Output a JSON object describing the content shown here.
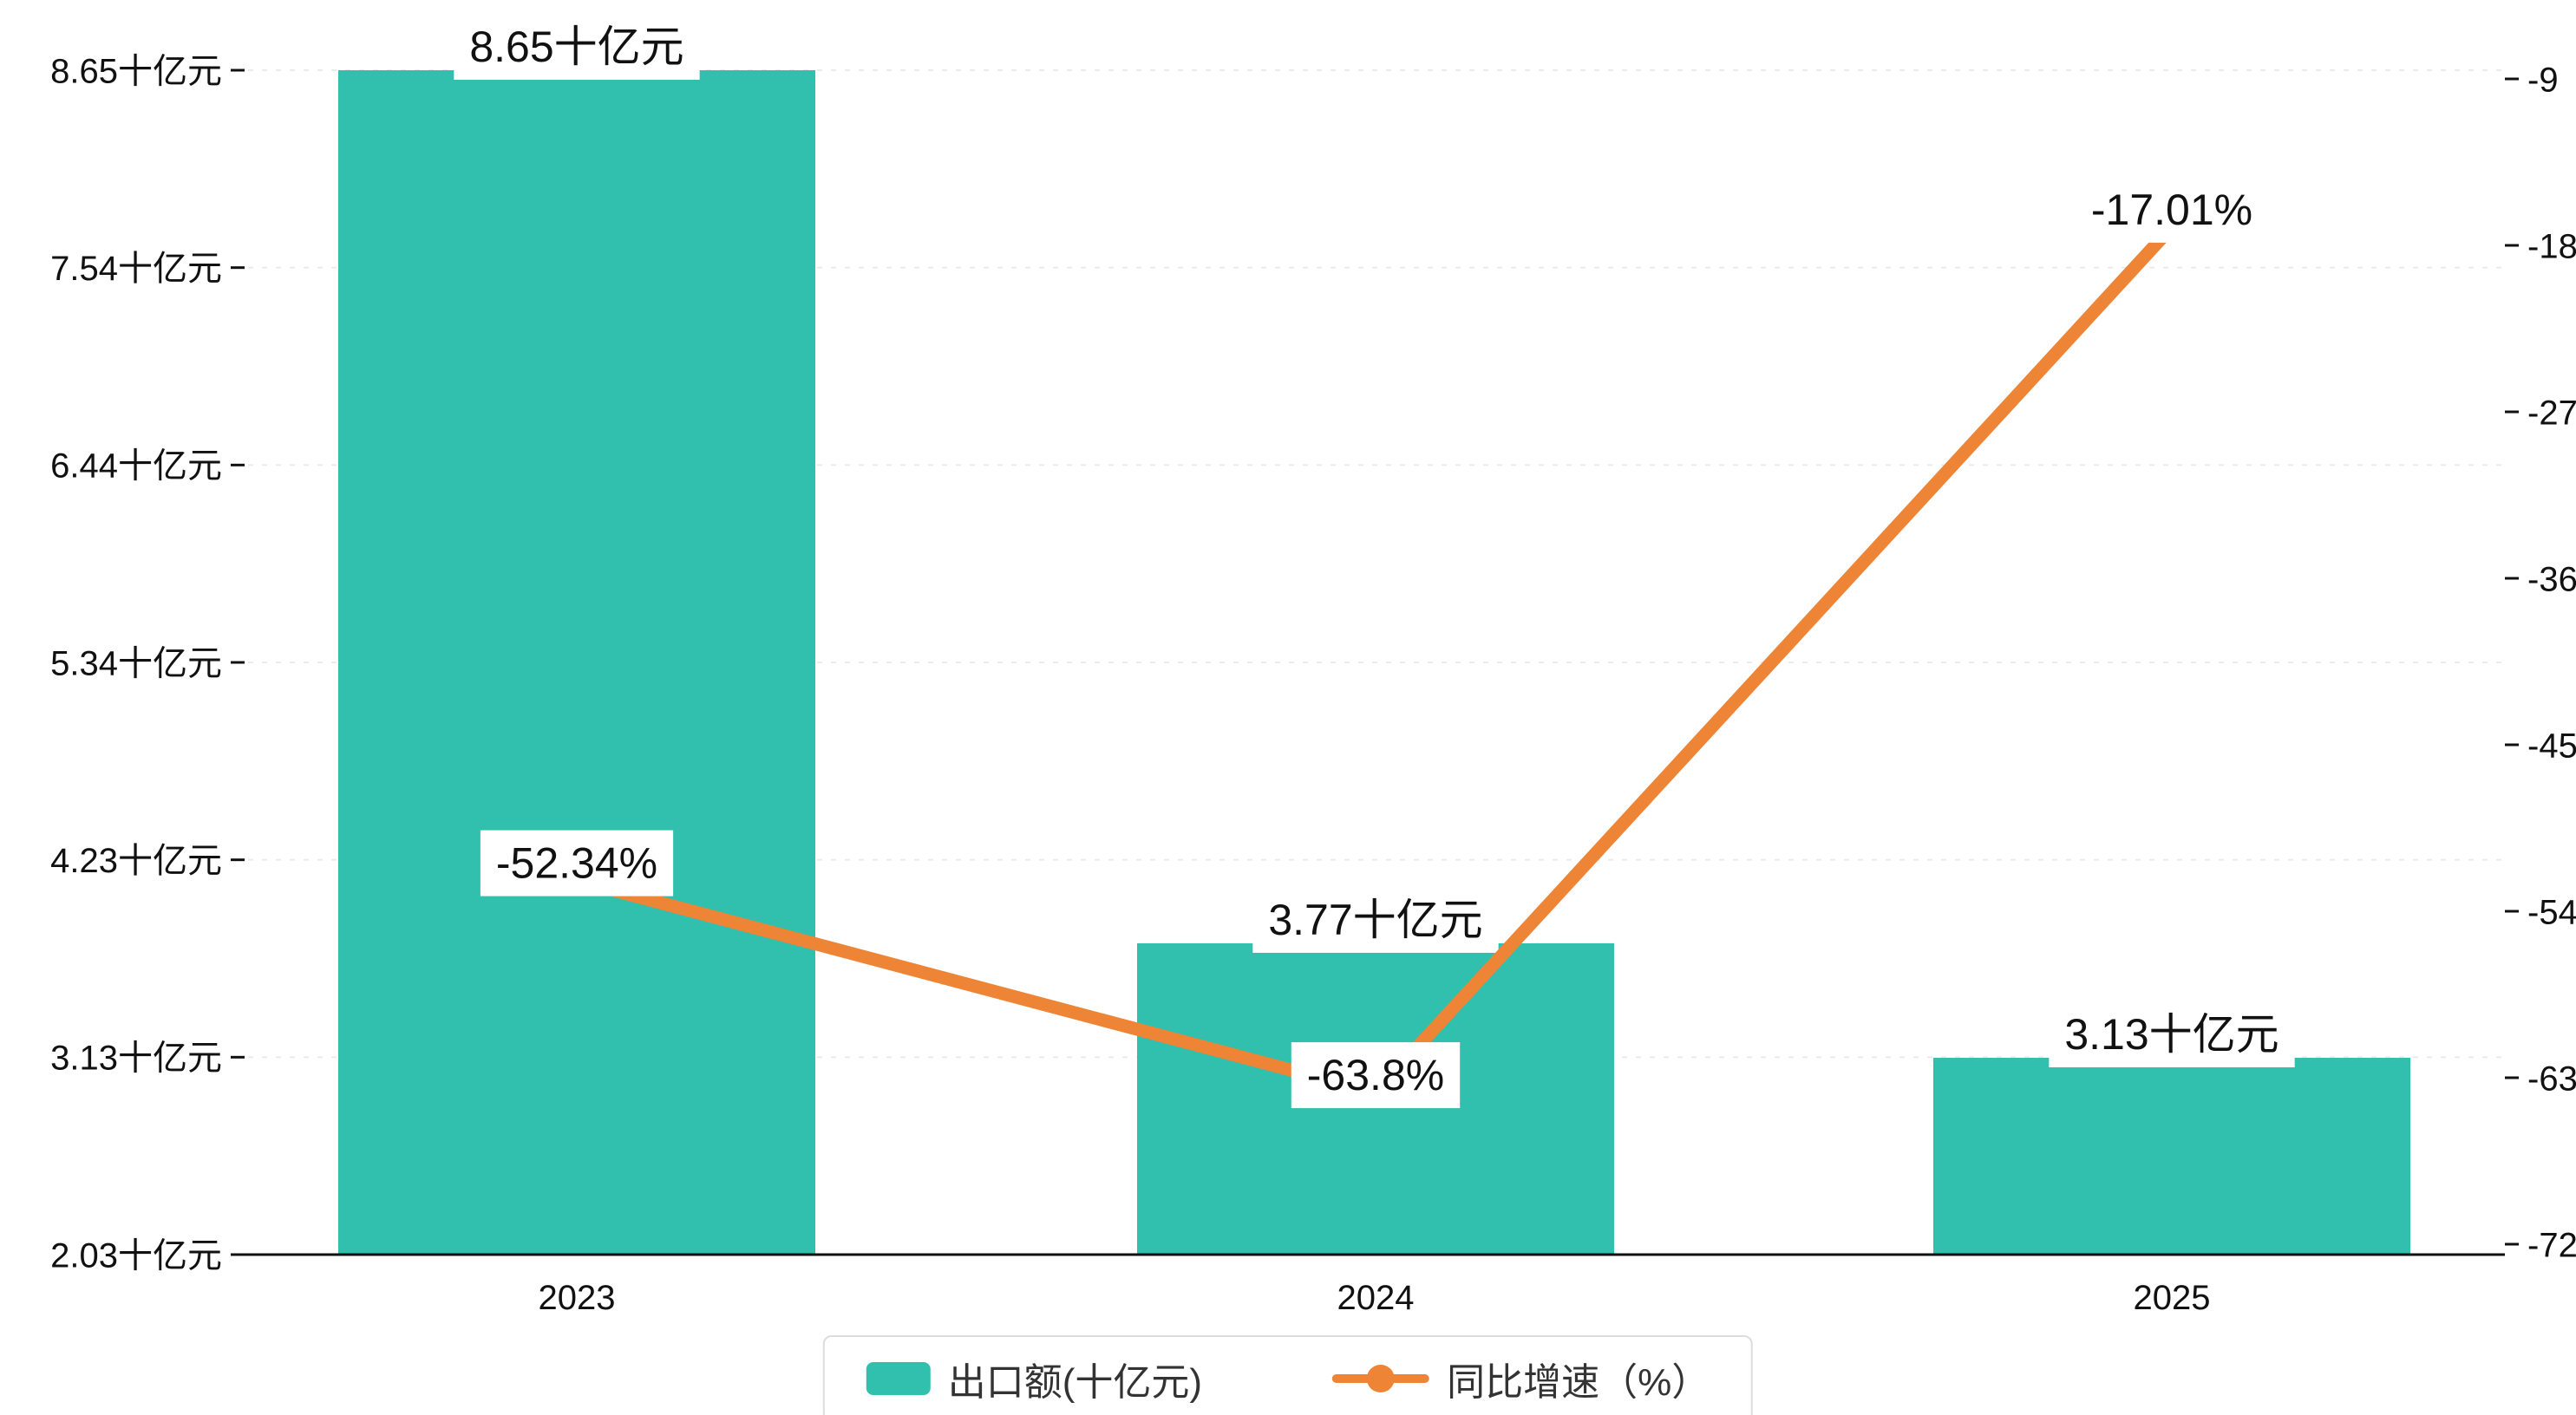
{
  "chart": {
    "background": "#ffffff",
    "bar_color": "#31bfae",
    "line_color": "#ee8435",
    "text_color": "#111111",
    "axis_color": "#111111",
    "grid_color": "#ebebeb",
    "label_bg_color": "#ffffff"
  },
  "chart_data": {
    "type": "bar+line",
    "title": "",
    "categories": [
      "2023",
      "2024",
      "2025"
    ],
    "series": [
      {
        "name": "出口额(十亿元)",
        "type": "bar",
        "axis": "left",
        "values": [
          8.65,
          3.77,
          3.13
        ],
        "labels": [
          "8.65十亿元",
          "3.77十亿元",
          "3.13十亿元"
        ]
      },
      {
        "name": "同比增速（%）",
        "type": "line",
        "axis": "right",
        "values": [
          -52.34,
          -63.8,
          -17.01
        ],
        "labels": [
          "-52.34%",
          "-63.8%",
          "-17.01%"
        ]
      }
    ],
    "left_axis": {
      "min": 2.03,
      "max": 8.65,
      "tick_labels_bottom_up": [
        "2.03十亿元",
        "3.13十亿元",
        "4.23十亿元",
        "5.34十亿元",
        "6.44十亿元",
        "7.54十亿元",
        "8.65十亿元"
      ]
    },
    "right_axis": {
      "min": -72,
      "max": -9,
      "tick_labels_bottom_up": [
        "-72",
        "-63",
        "-54",
        "-45",
        "-36",
        "-27",
        "-18",
        "-9"
      ]
    },
    "grid": true,
    "legend": {
      "position": "bottom",
      "items": [
        {
          "label": "出口额(十亿元)",
          "marker": "bar"
        },
        {
          "label": "同比增速（%）",
          "marker": "line"
        }
      ]
    }
  }
}
